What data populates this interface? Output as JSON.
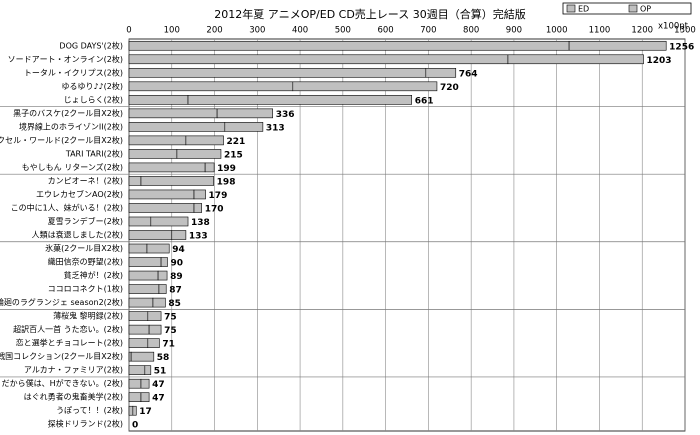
{
  "chart_data": {
    "type": "stacked-hbar",
    "title": "2012年夏 アニメOP/ED CD売上レース 30週目（合算）完結版",
    "axis_unit": "x100pt",
    "categories": [
      "DOG DAYS'(2枚)",
      "ソードアート・オンライン(2枚)",
      "トータル・イクリプス(2枚)",
      "ゆるゆり♪♪(2枚)",
      "じょしらく(2枚)",
      "黒子のバスケ(2クール目X2枚)",
      "境界線上のホライゾンII(2枚)",
      "アクセル・ワールド(2クール目X2枚)",
      "TARI TARI(2枚)",
      "もやしもん リターンズ(2枚)",
      "カンピオーネ！(2枚)",
      "エウレカセブンAO(2枚)",
      "この中に1人、妹がいる！(2枚)",
      "夏雪ランデブー(2枚)",
      "人類は衰退しました(2枚)",
      "氷菓(2クール目X2枚)",
      "織田信奈の野望(2枚)",
      "貧乏神が！(2枚)",
      "ココロコネクト(1枚)",
      "輪廻のラグランジェ season2(2枚)",
      "薄桜鬼 黎明録(2枚)",
      "超訳百人一首 うた恋い。(2枚)",
      "恋と選挙とチョコレート(2枚)",
      "戦国コレクション(2クール目X2枚)",
      "アルカナ・ファミリア(2枚)",
      "だから僕は、Hができない。(2枚)",
      "はぐれ勇者の鬼畜美学(2枚)",
      "うぽって！！(2枚)",
      "探検ドリランド(2枚)"
    ],
    "series": [
      {
        "name": "ED",
        "color": "#c0c0c0",
        "values": [
          1029,
          886,
          694,
          383,
          138,
          206,
          224,
          133,
          112,
          178,
          28,
          152,
          152,
          51,
          100,
          42,
          75,
          68,
          70,
          56,
          44,
          47,
          44,
          5,
          37,
          28,
          28,
          9,
          0
        ]
      },
      {
        "name": "OP",
        "color": "#c0c0c0",
        "values": [
          227,
          317,
          70,
          337,
          523,
          130,
          89,
          88,
          103,
          21,
          170,
          27,
          18,
          87,
          33,
          52,
          15,
          21,
          17,
          29,
          31,
          28,
          27,
          53,
          14,
          19,
          19,
          8,
          0
        ]
      }
    ],
    "totals": [
      1256,
      1203,
      764,
      720,
      661,
      336,
      313,
      221,
      215,
      199,
      198,
      179,
      170,
      138,
      133,
      94,
      90,
      89,
      87,
      85,
      75,
      75,
      71,
      58,
      51,
      47,
      47,
      17,
      0
    ],
    "xlim": [
      0,
      1300
    ],
    "xticks": [
      0,
      100,
      200,
      300,
      400,
      500,
      600,
      700,
      800,
      900,
      1000,
      1100,
      1200,
      1300
    ],
    "grid": true
  }
}
